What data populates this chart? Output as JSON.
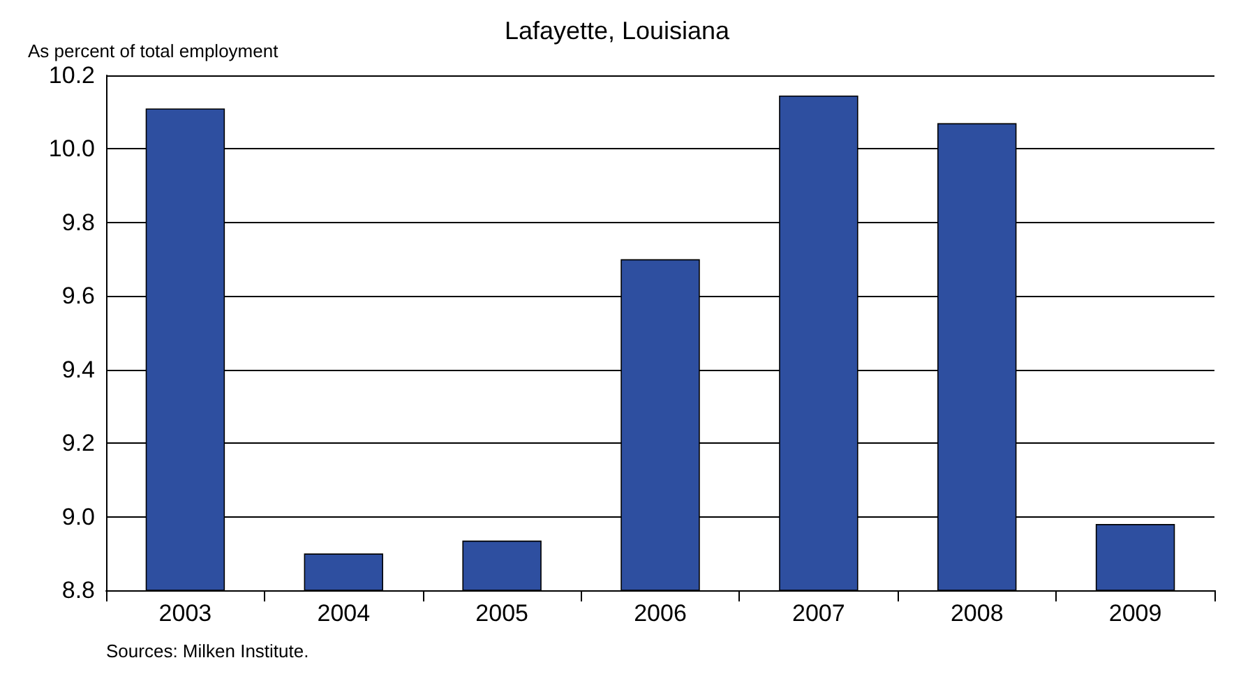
{
  "chart_data": {
    "type": "bar",
    "title": "Lafayette, Louisiana",
    "ylabel": "As percent of total employment",
    "categories": [
      "2003",
      "2004",
      "2005",
      "2006",
      "2007",
      "2008",
      "2009"
    ],
    "values": [
      10.11,
      8.9,
      8.935,
      9.7,
      10.145,
      10.07,
      8.98
    ],
    "color": "#2e4fa0",
    "ylim": [
      8.8,
      10.2
    ],
    "yticks": [
      8.8,
      {
        "value": 9,
        "label": "9.0"
      },
      9.2,
      9.4,
      9.6,
      9.8,
      {
        "value": 10,
        "label": "10.0"
      },
      10.2
    ],
    "grid": "y",
    "annotations": [
      "Sources: Milken Institute."
    ]
  }
}
